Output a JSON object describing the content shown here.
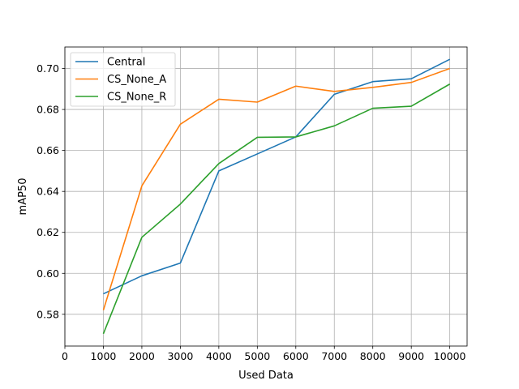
{
  "chart_data": {
    "type": "line",
    "title": "",
    "xlabel": "Used Data",
    "ylabel": "mAP50",
    "xlim": [
      0,
      10450
    ],
    "ylim": [
      0.5645,
      0.7105
    ],
    "xticks": [
      0,
      1000,
      2000,
      3000,
      4000,
      5000,
      6000,
      7000,
      8000,
      9000,
      10000
    ],
    "yticks": [
      0.58,
      0.6,
      0.62,
      0.64,
      0.66,
      0.68,
      0.7
    ],
    "x_tick_labels": [
      "0",
      "1000",
      "2000",
      "3000",
      "4000",
      "5000",
      "6000",
      "7000",
      "8000",
      "9000",
      "10000"
    ],
    "y_tick_labels": [
      "0.58",
      "0.60",
      "0.62",
      "0.64",
      "0.66",
      "0.68",
      "0.70"
    ],
    "grid": true,
    "legend_position": "top-left",
    "x": [
      1000,
      2000,
      3000,
      4000,
      5000,
      6000,
      7000,
      8000,
      9000,
      10000
    ],
    "series": [
      {
        "name": "Central",
        "color": "#1f77b4",
        "values": [
          0.59,
          0.5988,
          0.605,
          0.65,
          0.6583,
          0.6666,
          0.6874,
          0.6936,
          0.695,
          0.7045
        ]
      },
      {
        "name": "CS_None_A",
        "color": "#ff7f0e",
        "values": [
          0.582,
          0.6427,
          0.6728,
          0.685,
          0.6836,
          0.6914,
          0.6888,
          0.6908,
          0.6932,
          0.7
        ]
      },
      {
        "name": "CS_None_R",
        "color": "#2ca02c",
        "values": [
          0.5705,
          0.6176,
          0.6338,
          0.6536,
          0.6664,
          0.6666,
          0.672,
          0.6806,
          0.6816,
          0.6924
        ]
      }
    ]
  }
}
